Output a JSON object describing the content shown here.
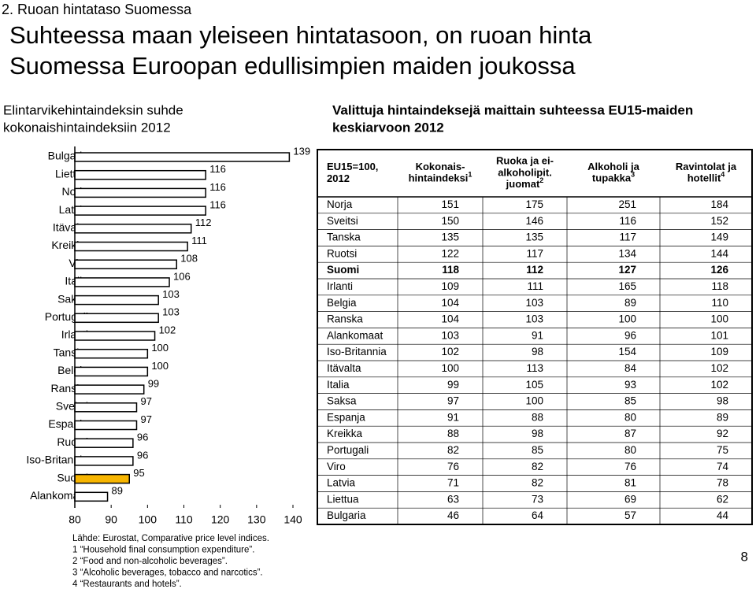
{
  "header": {
    "section": "2. Ruoan hintataso Suomessa",
    "title": [
      "Suhteessa maan yleiseen hintatasoon, on ruoan hinta",
      "Suomessa Euroopan edullisimpien maiden joukossa"
    ]
  },
  "chart_data": {
    "type": "bar",
    "orientation": "horizontal",
    "title": [
      "Elintarvikehintaindeksin suhde",
      "kokonaishintaindeksiin 2012"
    ],
    "categories": [
      "Bulgaria",
      "Liettua",
      "Norja",
      "Latvia",
      "Itävalta",
      "Kreikka",
      "Viro",
      "Italia",
      "Saksa",
      "Portugali",
      "Irlanti",
      "Tanska",
      "Belgia",
      "Ranska",
      "Sveitsi",
      "Espanja",
      "Ruotsi",
      "Iso-Britannia",
      "Suomi",
      "Alankomaat"
    ],
    "values": [
      139,
      116,
      116,
      116,
      112,
      111,
      108,
      106,
      103,
      103,
      102,
      100,
      100,
      99,
      97,
      97,
      96,
      96,
      95,
      89
    ],
    "colors": [
      "#ffffff",
      "#ffffff",
      "#ffffff",
      "#ffffff",
      "#ffffff",
      "#ffffff",
      "#ffffff",
      "#ffffff",
      "#ffffff",
      "#ffffff",
      "#ffffff",
      "#ffffff",
      "#ffffff",
      "#ffffff",
      "#ffffff",
      "#ffffff",
      "#ffffff",
      "#ffffff",
      "#f7b500",
      "#ffffff"
    ],
    "xlim": [
      80,
      140
    ],
    "xticks": [
      80,
      90,
      100,
      110,
      120,
      130,
      140
    ],
    "grid": false
  },
  "table": {
    "title": [
      "Valittuja hintaindeksejä maittain suhteessa EU15-maiden",
      "keskiarvoon 2012"
    ],
    "columns": [
      {
        "lines": [
          "EU15=100,",
          "2012"
        ]
      },
      {
        "lines": [
          "Kokonais-",
          "hintaindeksi"
        ],
        "sup": "1"
      },
      {
        "lines": [
          "Ruoka ja ei-",
          "alkoholipit.",
          "juomat"
        ],
        "sup": "2"
      },
      {
        "lines": [
          "Alkoholi ja",
          "tupakka"
        ],
        "sup": "3"
      },
      {
        "lines": [
          "Ravintolat ja",
          "hotellit"
        ],
        "sup": "4"
      }
    ],
    "rows": [
      [
        "Norja",
        151,
        175,
        251,
        184
      ],
      [
        "Sveitsi",
        150,
        146,
        116,
        152
      ],
      [
        "Tanska",
        135,
        135,
        117,
        149
      ],
      [
        "Ruotsi",
        122,
        117,
        134,
        144
      ],
      [
        "Suomi",
        118,
        112,
        127,
        126
      ],
      [
        "Irlanti",
        109,
        111,
        165,
        118
      ],
      [
        "Belgia",
        104,
        103,
        89,
        110
      ],
      [
        "Ranska",
        104,
        103,
        100,
        100
      ],
      [
        "Alankomaat",
        103,
        91,
        96,
        101
      ],
      [
        "Iso-Britannia",
        102,
        98,
        154,
        109
      ],
      [
        "Itävalta",
        100,
        113,
        84,
        102
      ],
      [
        "Italia",
        99,
        105,
        93,
        102
      ],
      [
        "Saksa",
        97,
        100,
        85,
        98
      ],
      [
        "Espanja",
        91,
        88,
        80,
        89
      ],
      [
        "Kreikka",
        88,
        98,
        87,
        92
      ],
      [
        "Portugali",
        82,
        85,
        80,
        75
      ],
      [
        "Viro",
        76,
        82,
        76,
        74
      ],
      [
        "Latvia",
        71,
        82,
        81,
        78
      ],
      [
        "Liettua",
        63,
        73,
        69,
        62
      ],
      [
        "Bulgaria",
        46,
        64,
        57,
        44
      ]
    ],
    "bold_row": "Suomi"
  },
  "footnotes": [
    "Lähde: Eurostat, Comparative price level indices.",
    "1 “Household final consumption expenditure”.",
    "2 “Food and non-alcoholic beverages”.",
    "3 “Alcoholic beverages, tobacco and narcotics”.",
    "4 “Restaurants and hotels”."
  ],
  "page_number": "8"
}
